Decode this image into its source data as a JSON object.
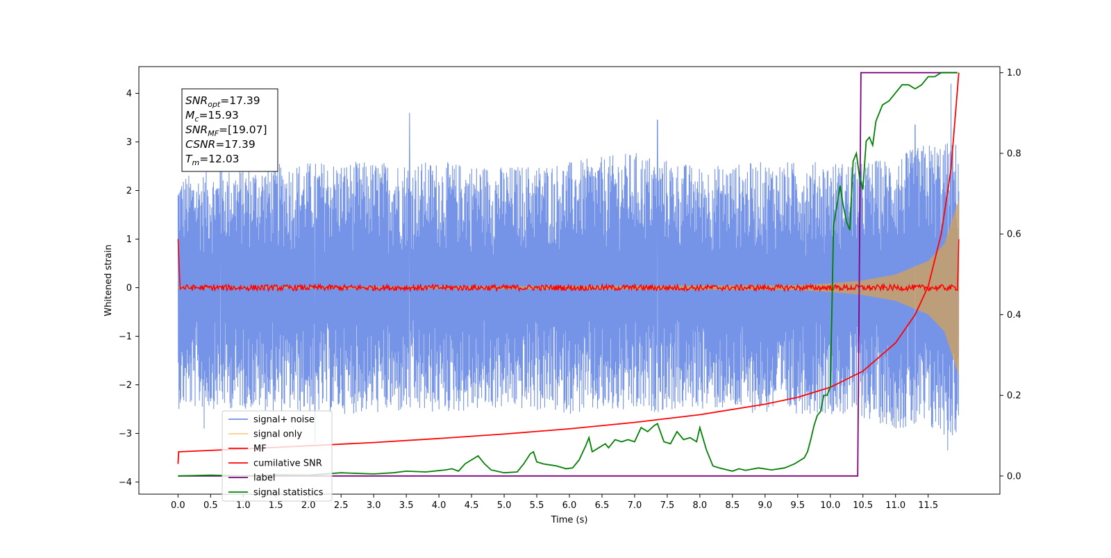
{
  "chart_data": {
    "type": "line",
    "xlabel": "Time (s)",
    "ylabel": "Whitened strain",
    "xlim": [
      -0.6,
      12.6
    ],
    "ylim": [
      -4.25,
      4.55
    ],
    "y2lim": [
      -0.045,
      1.015
    ],
    "x_ticks": [
      0.0,
      0.5,
      1.0,
      1.5,
      2.0,
      2.5,
      3.0,
      3.5,
      4.0,
      4.5,
      5.0,
      5.5,
      6.0,
      6.5,
      7.0,
      7.5,
      8.0,
      8.5,
      9.0,
      9.5,
      10.0,
      10.5,
      11.0,
      11.5
    ],
    "x_tick_labels": [
      "0.0",
      "0.5",
      "1.0",
      "1.5",
      "2.0",
      "2.5",
      "3.0",
      "3.5",
      "4.0",
      "4.5",
      "5.0",
      "5.5",
      "6.0",
      "6.5",
      "7.0",
      "7.5",
      "8.0",
      "8.5",
      "9.0",
      "9.5",
      "10.0",
      "10.5",
      "11.0",
      "11.5"
    ],
    "y_ticks": [
      4,
      3,
      2,
      1,
      0,
      -1,
      -2,
      -3,
      -4
    ],
    "y_tick_labels": [
      "4",
      "3",
      "2",
      "1",
      "0",
      "−1",
      "−2",
      "−3",
      "−4"
    ],
    "y2_ticks": [
      1.0,
      0.8,
      0.6,
      0.4,
      0.2,
      0.0
    ],
    "y2_tick_labels": [
      "1.0",
      "0.8",
      "0.6",
      "0.4",
      "0.2",
      "0.0"
    ],
    "grid": false,
    "legend_position": "lower-left",
    "annotation": {
      "lines": [
        {
          "sym": "SNR",
          "sub": "opt",
          "value": "=17.39"
        },
        {
          "sym": "M",
          "sub": "c",
          "value": "=15.93"
        },
        {
          "sym": "SNR",
          "sub": "MF",
          "value": "=[19.07]"
        },
        {
          "sym": "CSNR",
          "sub": "",
          "value": "=17.39"
        },
        {
          "sym": "T",
          "sub": "m",
          "value": "=12.03"
        }
      ]
    },
    "series": [
      {
        "name": "signal+ noise",
        "axis": "left",
        "color": "#6f8ee6",
        "sampled": true,
        "envelope_x": [
          0.0,
          1.0,
          2.0,
          3.0,
          4.0,
          5.0,
          6.0,
          7.0,
          8.0,
          9.0,
          10.0,
          10.5,
          11.0,
          11.5,
          11.97
        ],
        "envelope_upper": [
          2.3,
          2.5,
          2.6,
          2.6,
          2.6,
          2.5,
          2.6,
          2.8,
          2.5,
          2.6,
          2.6,
          2.6,
          2.7,
          3.0,
          3.0
        ],
        "envelope_lower": [
          -2.5,
          -2.5,
          -2.6,
          -2.6,
          -2.6,
          -2.5,
          -2.6,
          -2.6,
          -2.5,
          -2.6,
          -2.6,
          -2.7,
          -2.9,
          -3.0,
          -3.1
        ],
        "peaks": [
          {
            "x": 3.55,
            "y": 3.6
          },
          {
            "x": 7.35,
            "y": 3.45
          },
          {
            "x": 11.85,
            "y": 4.2
          },
          {
            "x": 0.65,
            "y": 3.0
          },
          {
            "x": 11.3,
            "y": 3.35
          },
          {
            "x": 2.1,
            "y": -3.2
          },
          {
            "x": 11.8,
            "y": -3.35
          },
          {
            "x": 0.4,
            "y": -2.9
          }
        ]
      },
      {
        "name": "signal only",
        "axis": "left",
        "color": "#f5a623",
        "envelope_x": [
          0.0,
          9.5,
          10.0,
          10.5,
          11.0,
          11.5,
          11.75,
          11.97
        ],
        "envelope_amp": [
          0.01,
          0.05,
          0.09,
          0.15,
          0.27,
          0.55,
          0.9,
          1.8
        ]
      },
      {
        "name": "MF",
        "axis": "left",
        "color": "#ff0000",
        "start_spike": 1.0,
        "end_spike": 1.0,
        "noise_amp": 0.06
      },
      {
        "name": "cumilative SNR",
        "axis": "right",
        "color": "#ff0000",
        "x": [
          0.0,
          0.01,
          1.0,
          2.0,
          3.0,
          4.0,
          5.0,
          6.0,
          7.0,
          8.0,
          9.0,
          9.5,
          10.0,
          10.5,
          11.0,
          11.3,
          11.5,
          11.7,
          11.85,
          11.97
        ],
        "y": [
          0.03,
          0.06,
          0.067,
          0.075,
          0.083,
          0.093,
          0.104,
          0.117,
          0.133,
          0.152,
          0.178,
          0.195,
          0.22,
          0.26,
          0.33,
          0.4,
          0.47,
          0.6,
          0.76,
          1.0
        ]
      },
      {
        "name": "label",
        "axis": "right",
        "color": "#800080",
        "x": [
          0.0,
          10.42,
          10.47,
          11.95
        ],
        "y": [
          0.0,
          0.0,
          1.0,
          1.0
        ]
      },
      {
        "name": "signal statistics",
        "axis": "right",
        "color": "#008000",
        "x": [
          0.0,
          0.5,
          1.0,
          1.5,
          2.0,
          2.5,
          3.0,
          3.3,
          3.5,
          3.8,
          4.1,
          4.2,
          4.3,
          4.4,
          4.5,
          4.6,
          4.7,
          4.8,
          5.0,
          5.2,
          5.3,
          5.4,
          5.45,
          5.5,
          5.6,
          5.8,
          5.95,
          6.05,
          6.15,
          6.25,
          6.3,
          6.35,
          6.45,
          6.55,
          6.6,
          6.7,
          6.8,
          6.9,
          7.0,
          7.1,
          7.2,
          7.3,
          7.35,
          7.45,
          7.55,
          7.65,
          7.75,
          7.85,
          7.95,
          8.0,
          8.1,
          8.2,
          8.3,
          8.5,
          8.6,
          8.7,
          8.9,
          9.1,
          9.3,
          9.45,
          9.55,
          9.6,
          9.65,
          9.7,
          9.75,
          9.8,
          9.85,
          9.9,
          9.95,
          10.0,
          10.05,
          10.1,
          10.15,
          10.2,
          10.25,
          10.3,
          10.35,
          10.4,
          10.45,
          10.5,
          10.55,
          10.6,
          10.65,
          10.7,
          10.8,
          10.9,
          11.0,
          11.1,
          11.2,
          11.3,
          11.4,
          11.5,
          11.6,
          11.7,
          11.8,
          11.95
        ],
        "y": [
          0.0,
          0.002,
          0.0,
          0.003,
          0.002,
          0.008,
          0.005,
          0.008,
          0.012,
          0.01,
          0.015,
          0.018,
          0.012,
          0.03,
          0.04,
          0.05,
          0.03,
          0.015,
          0.008,
          0.01,
          0.03,
          0.055,
          0.06,
          0.035,
          0.03,
          0.025,
          0.018,
          0.02,
          0.04,
          0.075,
          0.095,
          0.06,
          0.07,
          0.08,
          0.07,
          0.09,
          0.085,
          0.09,
          0.085,
          0.12,
          0.11,
          0.125,
          0.13,
          0.085,
          0.08,
          0.11,
          0.09,
          0.095,
          0.085,
          0.12,
          0.065,
          0.025,
          0.02,
          0.012,
          0.018,
          0.014,
          0.02,
          0.015,
          0.02,
          0.03,
          0.04,
          0.045,
          0.06,
          0.09,
          0.125,
          0.15,
          0.16,
          0.2,
          0.2,
          0.22,
          0.62,
          0.67,
          0.72,
          0.67,
          0.63,
          0.61,
          0.78,
          0.8,
          0.74,
          0.71,
          0.83,
          0.84,
          0.82,
          0.88,
          0.92,
          0.93,
          0.95,
          0.97,
          0.97,
          0.96,
          0.97,
          0.99,
          0.99,
          1.0,
          1.0,
          1.0
        ]
      }
    ]
  }
}
